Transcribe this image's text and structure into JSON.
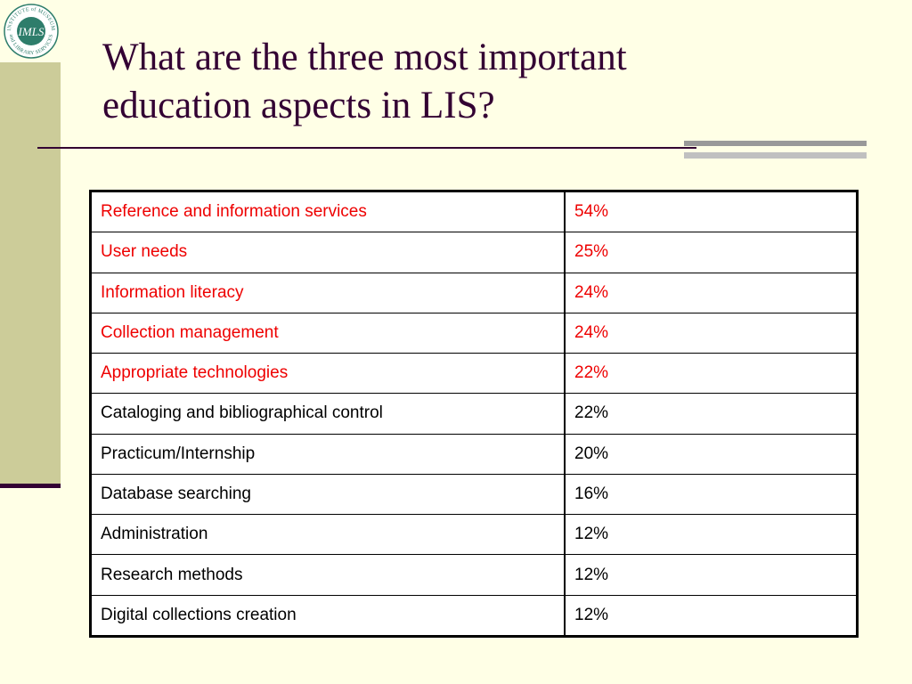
{
  "logo": {
    "text_top": "INSTITUTE of MUSEUM",
    "text_bottom": "and LIBRARY SERVICES",
    "monogram": "IMLS",
    "colors": {
      "ring": "#2E7D6B",
      "inner": "#2E7D6B",
      "text": "#FFFFFF"
    }
  },
  "slide": {
    "title_line1": "What are the three most important",
    "title_line2": "education aspects in LIS?"
  },
  "table": {
    "rows": [
      {
        "label": "Reference and information services",
        "value": "54%",
        "highlight": true
      },
      {
        "label": "User needs",
        "value": "25%",
        "highlight": true
      },
      {
        "label": "Information literacy",
        "value": "24%",
        "highlight": true
      },
      {
        "label": "Collection management",
        "value": "24%",
        "highlight": true
      },
      {
        "label": "Appropriate technologies",
        "value": "22%",
        "highlight": true
      },
      {
        "label": "Cataloging and bibliographical control",
        "value": "22%",
        "highlight": false
      },
      {
        "label": "Practicum/Internship",
        "value": "20%",
        "highlight": false
      },
      {
        "label": "Database searching",
        "value": "16%",
        "highlight": false
      },
      {
        "label": "Administration",
        "value": "12%",
        "highlight": false
      },
      {
        "label": "Research methods",
        "value": "12%",
        "highlight": false
      },
      {
        "label": "Digital collections creation",
        "value": "12%",
        "highlight": false
      }
    ]
  },
  "colors": {
    "background": "#FFFFE6",
    "sidebar": "#CCCC99",
    "title": "#330033",
    "highlight_text": "#EE0000"
  }
}
